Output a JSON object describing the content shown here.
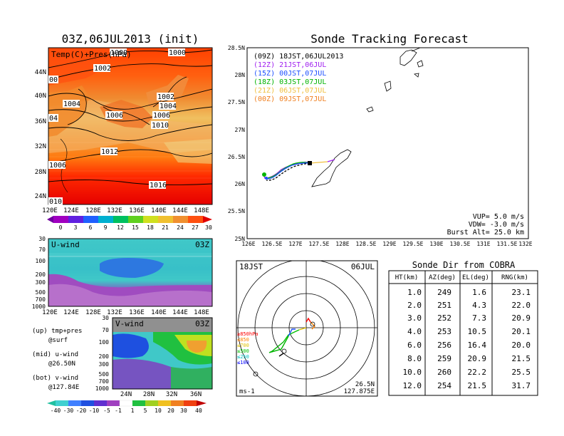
{
  "titles": {
    "left": "03Z,06JUL2013 (init)",
    "right": "Sonde Tracking Forecast"
  },
  "map_panel": {
    "overlay_label": "Temp(C)+Pres(hPa)",
    "lat_labels": [
      "44N",
      "40N",
      "36N",
      "32N",
      "28N",
      "24N"
    ],
    "lon_labels": [
      "120E",
      "124E",
      "128E",
      "132E",
      "136E",
      "140E",
      "144E",
      "148E"
    ],
    "isobars": [
      "1000",
      "1000",
      "1002",
      "1002",
      "1004",
      "1004",
      "1006",
      "1006",
      "1006",
      "1010",
      "1012",
      "1016",
      "010",
      "00",
      "04"
    ],
    "colorbar_ticks": [
      "0",
      "3",
      "6",
      "9",
      "12",
      "15",
      "18",
      "21",
      "24",
      "27",
      "30"
    ]
  },
  "u_panel": {
    "title": "U-wind",
    "time": "03Z",
    "y_labels": [
      "30",
      "70",
      "100",
      "200",
      "300",
      "500",
      "700",
      "1000"
    ],
    "x_labels": [
      "120E",
      "124E",
      "128E",
      "132E",
      "136E",
      "140E",
      "144E",
      "148E"
    ]
  },
  "v_panel": {
    "title": "V-wind",
    "time": "03Z",
    "y_labels": [
      "30",
      "70",
      "100",
      "200",
      "300",
      "500",
      "700",
      "1000"
    ],
    "x_labels": [
      "24N",
      "28N",
      "32N",
      "36N"
    ]
  },
  "panel_legend": {
    "line1": "(up) tmp+pres",
    "line2": "@surf",
    "line3": "(mid) u-wind",
    "line4": "@26.50N",
    "line5": "(bot) v-wind",
    "line6": "@127.84E"
  },
  "wind_colorbar_ticks": [
    "-40",
    "-30",
    "-20",
    "-10",
    "-5",
    "-1",
    "1",
    "5",
    "10",
    "20",
    "30",
    "40"
  ],
  "track_panel": {
    "lat_labels": [
      "28.5N",
      "28N",
      "27.5N",
      "27N",
      "26.5N",
      "26N",
      "25.5N",
      "25N"
    ],
    "lon_labels": [
      "126E",
      "126.5E",
      "127E",
      "127.5E",
      "128E",
      "128.5E",
      "129E",
      "129.5E",
      "130E",
      "130.5E",
      "131E",
      "131.5E",
      "132E"
    ],
    "legend": [
      {
        "text": "(09Z) 18JST,06JUL2013",
        "color": "#000000"
      },
      {
        "text": "(12Z) 21JST,06JUL",
        "color": "#a020f0"
      },
      {
        "text": "(15Z) 00JST,07JUL",
        "color": "#1e50ff"
      },
      {
        "text": "(18Z) 03JST,07JUL",
        "color": "#00b400"
      },
      {
        "text": "(21Z) 06JST,07JUL",
        "color": "#f0c040"
      },
      {
        "text": "(00Z) 09JST,07JUL",
        "color": "#f08020"
      }
    ],
    "vup": "VUP= 5.0 m/s",
    "vdw": "VDW= -3.0 m/s",
    "burst": "Burst Alt= 25.0 km"
  },
  "polar_panel": {
    "time": "18JST",
    "date": "06JUL",
    "levels": [
      {
        "text": "≥850hPa",
        "color": "#ff0000"
      },
      {
        "text": "≤850",
        "color": "#ff8000"
      },
      {
        "text": "≤700",
        "color": "#e0c000"
      },
      {
        "text": "≤500",
        "color": "#00c000"
      },
      {
        "text": "≤250",
        "color": "#00c0c0"
      },
      {
        "text": "≤100",
        "color": "#0000ff"
      }
    ],
    "lat": "26.5N",
    "lon": "127.875E",
    "unit": "ms-1"
  },
  "sonde_table": {
    "title": "Sonde Dir from COBRA",
    "headers": [
      "HT(km)",
      "AZ(deg)",
      "EL(deg)",
      "RNG(km)"
    ],
    "rows": [
      [
        "1.0",
        "249",
        "1.6",
        "23.1"
      ],
      [
        "2.0",
        "251",
        "4.3",
        "22.0"
      ],
      [
        "3.0",
        "252",
        "7.3",
        "20.9"
      ],
      [
        "4.0",
        "253",
        "10.5",
        "20.1"
      ],
      [
        "6.0",
        "256",
        "16.4",
        "20.0"
      ],
      [
        "8.0",
        "259",
        "20.9",
        "21.5"
      ],
      [
        "10.0",
        "260",
        "22.2",
        "25.5"
      ],
      [
        "12.0",
        "254",
        "21.5",
        "31.7"
      ]
    ]
  }
}
